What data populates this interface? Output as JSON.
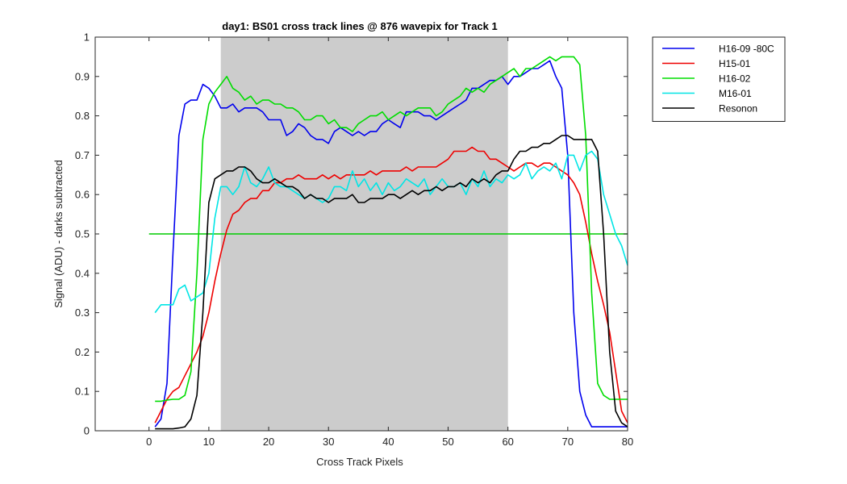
{
  "chart_data": {
    "type": "line",
    "title": "day1: BS01  cross track lines @ 876 wavepix for Track 1",
    "xlabel": "Cross Track Pixels",
    "ylabel": "Signal (ADU) - darks subtracted",
    "xlim": [
      -9,
      80
    ],
    "ylim": [
      0,
      1
    ],
    "xticks": [
      0,
      10,
      20,
      30,
      40,
      50,
      60,
      70,
      80
    ],
    "yticks": [
      0,
      0.1,
      0.2,
      0.3,
      0.4,
      0.5,
      0.6,
      0.7,
      0.8,
      0.9,
      1
    ],
    "xtick_labels": [
      "0",
      "10",
      "20",
      "30",
      "40",
      "50",
      "60",
      "70",
      "80"
    ],
    "ytick_labels": [
      "0",
      "0.1",
      "0.2",
      "0.3",
      "0.4",
      "0.5",
      "0.6",
      "0.7",
      "0.8",
      "0.9",
      "1"
    ],
    "grid": false,
    "legend_position": "outside-top-right",
    "shaded_region": {
      "x": [
        12,
        60
      ],
      "color": "#cccccc"
    },
    "reference_line": {
      "y": 0.5,
      "x": [
        0,
        80
      ],
      "color": "#00cc00"
    },
    "series": [
      {
        "name": "H16-09 -80C",
        "color": "#0000ee",
        "x": [
          1,
          2,
          3,
          4,
          5,
          6,
          7,
          8,
          9,
          10,
          11,
          12,
          13,
          14,
          15,
          16,
          17,
          18,
          19,
          20,
          21,
          22,
          23,
          24,
          25,
          26,
          27,
          28,
          29,
          30,
          31,
          32,
          33,
          34,
          35,
          36,
          37,
          38,
          39,
          40,
          41,
          42,
          43,
          44,
          45,
          46,
          47,
          48,
          49,
          50,
          51,
          52,
          53,
          54,
          55,
          56,
          57,
          58,
          59,
          60,
          61,
          62,
          63,
          64,
          65,
          66,
          67,
          68,
          69,
          70,
          71,
          72,
          73,
          74,
          75,
          76,
          77,
          78,
          79,
          80
        ],
        "y": [
          0.01,
          0.03,
          0.12,
          0.45,
          0.75,
          0.83,
          0.84,
          0.84,
          0.88,
          0.87,
          0.85,
          0.82,
          0.82,
          0.83,
          0.81,
          0.82,
          0.82,
          0.82,
          0.81,
          0.79,
          0.79,
          0.79,
          0.75,
          0.76,
          0.78,
          0.77,
          0.75,
          0.74,
          0.74,
          0.73,
          0.76,
          0.77,
          0.76,
          0.75,
          0.76,
          0.75,
          0.76,
          0.76,
          0.78,
          0.79,
          0.78,
          0.77,
          0.81,
          0.81,
          0.81,
          0.8,
          0.8,
          0.79,
          0.8,
          0.81,
          0.82,
          0.83,
          0.84,
          0.87,
          0.87,
          0.88,
          0.89,
          0.89,
          0.9,
          0.88,
          0.9,
          0.9,
          0.91,
          0.92,
          0.92,
          0.93,
          0.94,
          0.9,
          0.87,
          0.7,
          0.3,
          0.1,
          0.04,
          0.01,
          0.01,
          0.01,
          0.01,
          0.01,
          0.01,
          0.01
        ]
      },
      {
        "name": "H15-01",
        "color": "#ee0000",
        "x": [
          1,
          2,
          3,
          4,
          5,
          6,
          7,
          8,
          9,
          10,
          11,
          12,
          13,
          14,
          15,
          16,
          17,
          18,
          19,
          20,
          21,
          22,
          23,
          24,
          25,
          26,
          27,
          28,
          29,
          30,
          31,
          32,
          33,
          34,
          35,
          36,
          37,
          38,
          39,
          40,
          41,
          42,
          43,
          44,
          45,
          46,
          47,
          48,
          49,
          50,
          51,
          52,
          53,
          54,
          55,
          56,
          57,
          58,
          59,
          60,
          61,
          62,
          63,
          64,
          65,
          66,
          67,
          68,
          69,
          70,
          71,
          72,
          73,
          74,
          75,
          76,
          77,
          78,
          79,
          80
        ],
        "y": [
          0.02,
          0.05,
          0.08,
          0.1,
          0.11,
          0.14,
          0.17,
          0.2,
          0.24,
          0.3,
          0.38,
          0.45,
          0.51,
          0.55,
          0.56,
          0.58,
          0.59,
          0.59,
          0.61,
          0.61,
          0.63,
          0.63,
          0.64,
          0.64,
          0.65,
          0.64,
          0.64,
          0.64,
          0.65,
          0.64,
          0.65,
          0.64,
          0.65,
          0.65,
          0.65,
          0.65,
          0.66,
          0.65,
          0.66,
          0.66,
          0.66,
          0.66,
          0.67,
          0.66,
          0.67,
          0.67,
          0.67,
          0.67,
          0.68,
          0.69,
          0.71,
          0.71,
          0.71,
          0.72,
          0.71,
          0.71,
          0.69,
          0.69,
          0.68,
          0.67,
          0.66,
          0.67,
          0.68,
          0.68,
          0.67,
          0.68,
          0.68,
          0.67,
          0.66,
          0.65,
          0.63,
          0.6,
          0.53,
          0.45,
          0.38,
          0.32,
          0.25,
          0.15,
          0.05,
          0.02
        ]
      },
      {
        "name": "H16-02",
        "color": "#00dd00",
        "x": [
          1,
          2,
          3,
          4,
          5,
          6,
          7,
          8,
          9,
          10,
          11,
          12,
          13,
          14,
          15,
          16,
          17,
          18,
          19,
          20,
          21,
          22,
          23,
          24,
          25,
          26,
          27,
          28,
          29,
          30,
          31,
          32,
          33,
          34,
          35,
          36,
          37,
          38,
          39,
          40,
          41,
          42,
          43,
          44,
          45,
          46,
          47,
          48,
          49,
          50,
          51,
          52,
          53,
          54,
          55,
          56,
          57,
          58,
          59,
          60,
          61,
          62,
          63,
          64,
          65,
          66,
          67,
          68,
          69,
          70,
          71,
          72,
          73,
          74,
          75,
          76,
          77,
          78,
          79,
          80
        ],
        "y": [
          0.075,
          0.075,
          0.078,
          0.08,
          0.08,
          0.09,
          0.15,
          0.4,
          0.74,
          0.83,
          0.86,
          0.88,
          0.9,
          0.87,
          0.86,
          0.84,
          0.85,
          0.83,
          0.84,
          0.84,
          0.83,
          0.83,
          0.82,
          0.82,
          0.81,
          0.79,
          0.79,
          0.8,
          0.8,
          0.78,
          0.79,
          0.77,
          0.77,
          0.76,
          0.78,
          0.79,
          0.8,
          0.8,
          0.81,
          0.79,
          0.8,
          0.81,
          0.8,
          0.81,
          0.82,
          0.82,
          0.82,
          0.8,
          0.81,
          0.83,
          0.84,
          0.85,
          0.87,
          0.86,
          0.87,
          0.86,
          0.88,
          0.89,
          0.9,
          0.91,
          0.92,
          0.9,
          0.92,
          0.92,
          0.93,
          0.94,
          0.95,
          0.94,
          0.95,
          0.95,
          0.95,
          0.93,
          0.75,
          0.35,
          0.12,
          0.09,
          0.08,
          0.08,
          0.08,
          0.08
        ]
      },
      {
        "name": "M16-01",
        "color": "#00e5e5",
        "x": [
          1,
          2,
          3,
          4,
          5,
          6,
          7,
          8,
          9,
          10,
          11,
          12,
          13,
          14,
          15,
          16,
          17,
          18,
          19,
          20,
          21,
          22,
          23,
          24,
          25,
          26,
          27,
          28,
          29,
          30,
          31,
          32,
          33,
          34,
          35,
          36,
          37,
          38,
          39,
          40,
          41,
          42,
          43,
          44,
          45,
          46,
          47,
          48,
          49,
          50,
          51,
          52,
          53,
          54,
          55,
          56,
          57,
          58,
          59,
          60,
          61,
          62,
          63,
          64,
          65,
          66,
          67,
          68,
          69,
          70,
          71,
          72,
          73,
          74,
          75,
          76,
          77,
          78,
          79,
          80
        ],
        "y": [
          0.3,
          0.32,
          0.32,
          0.32,
          0.36,
          0.37,
          0.33,
          0.34,
          0.35,
          0.4,
          0.54,
          0.62,
          0.62,
          0.6,
          0.62,
          0.67,
          0.63,
          0.62,
          0.64,
          0.67,
          0.63,
          0.62,
          0.62,
          0.61,
          0.6,
          0.59,
          0.6,
          0.59,
          0.58,
          0.59,
          0.62,
          0.62,
          0.61,
          0.66,
          0.62,
          0.64,
          0.61,
          0.63,
          0.6,
          0.63,
          0.61,
          0.62,
          0.64,
          0.63,
          0.62,
          0.64,
          0.6,
          0.62,
          0.64,
          0.62,
          0.62,
          0.63,
          0.6,
          0.64,
          0.62,
          0.66,
          0.62,
          0.64,
          0.63,
          0.65,
          0.64,
          0.65,
          0.68,
          0.64,
          0.66,
          0.67,
          0.66,
          0.68,
          0.64,
          0.7,
          0.7,
          0.66,
          0.7,
          0.71,
          0.69,
          0.6,
          0.55,
          0.5,
          0.47,
          0.42
        ]
      },
      {
        "name": "Resonon",
        "color": "#000000",
        "x": [
          1,
          2,
          3,
          4,
          5,
          6,
          7,
          8,
          9,
          10,
          11,
          12,
          13,
          14,
          15,
          16,
          17,
          18,
          19,
          20,
          21,
          22,
          23,
          24,
          25,
          26,
          27,
          28,
          29,
          30,
          31,
          32,
          33,
          34,
          35,
          36,
          37,
          38,
          39,
          40,
          41,
          42,
          43,
          44,
          45,
          46,
          47,
          48,
          49,
          50,
          51,
          52,
          53,
          54,
          55,
          56,
          57,
          58,
          59,
          60,
          61,
          62,
          63,
          64,
          65,
          66,
          67,
          68,
          69,
          70,
          71,
          72,
          73,
          74,
          75,
          76,
          77,
          78,
          79,
          80
        ],
        "y": [
          0.005,
          0.005,
          0.005,
          0.005,
          0.007,
          0.01,
          0.03,
          0.09,
          0.3,
          0.58,
          0.64,
          0.65,
          0.66,
          0.66,
          0.67,
          0.67,
          0.66,
          0.64,
          0.63,
          0.63,
          0.64,
          0.63,
          0.62,
          0.62,
          0.61,
          0.59,
          0.6,
          0.59,
          0.59,
          0.58,
          0.59,
          0.59,
          0.59,
          0.6,
          0.58,
          0.58,
          0.59,
          0.59,
          0.59,
          0.6,
          0.6,
          0.59,
          0.6,
          0.61,
          0.6,
          0.61,
          0.61,
          0.62,
          0.61,
          0.62,
          0.62,
          0.63,
          0.62,
          0.64,
          0.63,
          0.64,
          0.63,
          0.65,
          0.66,
          0.66,
          0.69,
          0.71,
          0.71,
          0.72,
          0.72,
          0.73,
          0.73,
          0.74,
          0.75,
          0.75,
          0.74,
          0.74,
          0.74,
          0.74,
          0.71,
          0.5,
          0.2,
          0.05,
          0.02,
          0.01
        ]
      }
    ]
  }
}
